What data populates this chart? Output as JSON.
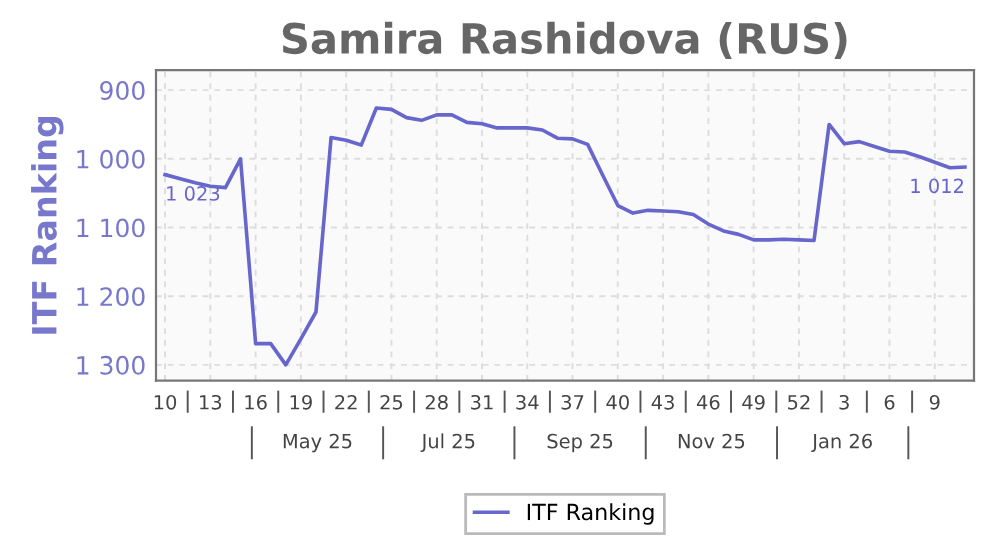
{
  "chart_data": {
    "type": "line",
    "title": "Samira Rashidova (RUS)",
    "ylabel": "ITF Ranking",
    "categories": [
      "10",
      null,
      null,
      "13",
      null,
      null,
      "16",
      null,
      null,
      "19",
      null,
      null,
      "22",
      null,
      null,
      "25",
      null,
      null,
      "28",
      null,
      null,
      "31",
      null,
      null,
      "34",
      null,
      null,
      "37",
      null,
      null,
      "40",
      null,
      null,
      "43",
      null,
      null,
      "46",
      null,
      null,
      "49",
      null,
      null,
      "52",
      null,
      null,
      "3",
      null,
      null,
      "6",
      null,
      null,
      "9",
      null,
      null
    ],
    "series": [
      {
        "name": "ITF Ranking",
        "color": "#6666cc",
        "values": [
          1023,
          1029,
          1035,
          1040,
          1042,
          1000,
          1269,
          1269,
          1300,
          1262,
          1223,
          969,
          973,
          980,
          926,
          928,
          940,
          944,
          936,
          936,
          947,
          949,
          955,
          955,
          955,
          958,
          970,
          971,
          979,
          1024,
          1068,
          1079,
          1075,
          1076,
          1077,
          1081,
          1095,
          1105,
          1110,
          1118,
          1118,
          1117,
          1118,
          1119,
          950,
          978,
          975,
          982,
          989,
          990,
          997,
          1005,
          1013,
          1012
        ],
        "value_labels": [
          "1 023",
          null,
          null,
          null,
          null,
          null,
          null,
          null,
          null,
          null,
          null,
          null,
          null,
          null,
          null,
          null,
          null,
          null,
          null,
          null,
          null,
          null,
          null,
          null,
          null,
          null,
          null,
          null,
          null,
          null,
          null,
          null,
          null,
          null,
          null,
          null,
          null,
          null,
          null,
          null,
          null,
          null,
          null,
          null,
          null,
          null,
          null,
          null,
          null,
          null,
          null,
          null,
          null,
          "1 012"
        ]
      }
    ],
    "annotations": [
      "May 25",
      "Jul 25",
      "Sep 25",
      "Nov 25",
      "Jan 26"
    ],
    "ylim": [
      1323,
      871
    ],
    "yticks": [
      {
        "value": 900,
        "label": "900"
      },
      {
        "value": 1000,
        "label": "1 000"
      },
      {
        "value": 1100,
        "label": "1 100"
      },
      {
        "value": 1200,
        "label": "1 200"
      },
      {
        "value": 1300,
        "label": "1 300"
      }
    ],
    "grid": true,
    "legend": "bottom",
    "marker": "none",
    "line_style": "solid"
  }
}
